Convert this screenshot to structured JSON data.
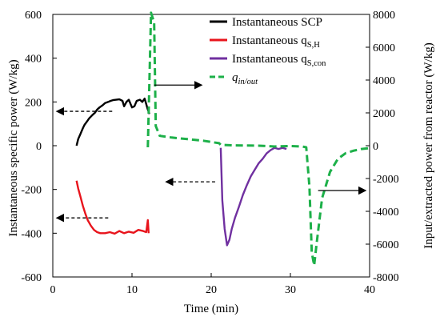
{
  "chart_data": {
    "type": "line",
    "x_axis": {
      "label": "Time (min)",
      "range": [
        0,
        40
      ],
      "ticks": [
        0,
        10,
        20,
        30,
        40
      ]
    },
    "y_left": {
      "label": "Instantaneous specific power (W/kg)",
      "range": [
        -600,
        600
      ],
      "ticks": [
        -600,
        -400,
        -200,
        0,
        200,
        400,
        600
      ]
    },
    "y_right": {
      "label": "Input/extracted power from reactor (W/kg)",
      "range": [
        -8000,
        8000
      ],
      "ticks": [
        -8000,
        -6000,
        -4000,
        -2000,
        0,
        2000,
        4000,
        6000,
        8000
      ]
    },
    "legend_placement": "top-right",
    "grid": false,
    "series": [
      {
        "name": "Instantaneous SCP",
        "legend": {
          "main": "Instantaneous SCP"
        },
        "axis": "left",
        "color": "#000000",
        "dash": "solid",
        "points": [
          [
            3.0,
            0
          ],
          [
            3.2,
            30
          ],
          [
            3.5,
            55
          ],
          [
            3.8,
            80
          ],
          [
            4.0,
            95
          ],
          [
            4.3,
            110
          ],
          [
            4.6,
            125
          ],
          [
            5.0,
            140
          ],
          [
            5.3,
            150
          ],
          [
            5.6,
            165
          ],
          [
            5.9,
            175
          ],
          [
            6.3,
            185
          ],
          [
            6.6,
            195
          ],
          [
            7.0,
            200
          ],
          [
            7.3,
            205
          ],
          [
            7.6,
            208
          ],
          [
            8.0,
            210
          ],
          [
            8.4,
            212
          ],
          [
            8.8,
            205
          ],
          [
            9.0,
            180
          ],
          [
            9.3,
            200
          ],
          [
            9.6,
            210
          ],
          [
            10.0,
            175
          ],
          [
            10.3,
            180
          ],
          [
            10.6,
            205
          ],
          [
            11.0,
            210
          ],
          [
            11.3,
            200
          ],
          [
            11.6,
            215
          ],
          [
            12.0,
            165
          ],
          [
            12.2,
            145
          ]
        ]
      },
      {
        "name": "Instantaneous qS,H",
        "legend": {
          "main": "Instantaneous q",
          "sub": "S,H"
        },
        "axis": "left",
        "color": "#e8141c",
        "dash": "solid",
        "points": [
          [
            3.0,
            -160
          ],
          [
            3.2,
            -195
          ],
          [
            3.5,
            -235
          ],
          [
            3.8,
            -275
          ],
          [
            4.1,
            -310
          ],
          [
            4.4,
            -340
          ],
          [
            4.8,
            -365
          ],
          [
            5.2,
            -385
          ],
          [
            5.6,
            -395
          ],
          [
            6.0,
            -400
          ],
          [
            6.6,
            -400
          ],
          [
            7.2,
            -395
          ],
          [
            7.8,
            -402
          ],
          [
            8.4,
            -390
          ],
          [
            9.0,
            -400
          ],
          [
            9.6,
            -393
          ],
          [
            10.2,
            -398
          ],
          [
            10.8,
            -385
          ],
          [
            11.4,
            -390
          ],
          [
            11.8,
            -395
          ],
          [
            12.0,
            -340
          ],
          [
            12.1,
            -400
          ]
        ]
      },
      {
        "name": "Instantaneous qS,con",
        "legend": {
          "main": "Instantaneous q",
          "sub": "S,con"
        },
        "axis": "left",
        "color": "#7030a0",
        "dash": "solid",
        "points": [
          [
            21.2,
            -10
          ],
          [
            21.4,
            -250
          ],
          [
            21.7,
            -380
          ],
          [
            22.0,
            -455
          ],
          [
            22.3,
            -430
          ],
          [
            22.6,
            -380
          ],
          [
            23.0,
            -330
          ],
          [
            23.5,
            -280
          ],
          [
            24.0,
            -225
          ],
          [
            24.5,
            -180
          ],
          [
            25.0,
            -140
          ],
          [
            25.5,
            -110
          ],
          [
            26.0,
            -80
          ],
          [
            26.5,
            -60
          ],
          [
            27.0,
            -35
          ],
          [
            27.5,
            -20
          ],
          [
            28.0,
            -10
          ],
          [
            28.5,
            -15
          ],
          [
            29.0,
            -10
          ],
          [
            29.5,
            -15
          ]
        ]
      },
      {
        "name": "qin/out",
        "legend": {
          "main": "q",
          "sub": "in/out",
          "italic": true
        },
        "axis": "right",
        "color": "#1db049",
        "dash": "dashed",
        "points": [
          [
            12.0,
            -100
          ],
          [
            12.4,
            8100
          ],
          [
            12.8,
            7500
          ],
          [
            13.0,
            1200
          ],
          [
            13.5,
            600
          ],
          [
            15.0,
            500
          ],
          [
            17.0,
            400
          ],
          [
            19.0,
            300
          ],
          [
            21.0,
            150
          ],
          [
            21.2,
            50
          ],
          [
            23.0,
            20
          ],
          [
            26.0,
            0
          ],
          [
            28.0,
            -50
          ],
          [
            30.0,
            -20
          ],
          [
            31.5,
            -50
          ],
          [
            32.0,
            -100
          ],
          [
            32.4,
            -2500
          ],
          [
            32.7,
            -6500
          ],
          [
            33.0,
            -7300
          ],
          [
            33.3,
            -6000
          ],
          [
            34.0,
            -3200
          ],
          [
            35.0,
            -1600
          ],
          [
            36.0,
            -800
          ],
          [
            37.0,
            -450
          ],
          [
            38.0,
            -300
          ],
          [
            39.0,
            -200
          ],
          [
            40.0,
            -150
          ]
        ]
      }
    ],
    "annotations": [
      {
        "text": "",
        "kind": "arrow-left",
        "from_x": 7.5,
        "to_x": 0.5,
        "y_left": 157
      },
      {
        "text": "",
        "kind": "arrow-left",
        "from_x": 7.0,
        "to_x": 0.5,
        "y_left": -330
      },
      {
        "text": "",
        "kind": "arrow-right",
        "from_x": 12.8,
        "to_x": 18.8,
        "y_left": 277
      },
      {
        "text": "",
        "kind": "arrow-left",
        "from_x": 20.5,
        "to_x": 14.3,
        "y_left": -165
      },
      {
        "text": "",
        "kind": "arrow-right",
        "from_x": 33.5,
        "to_x": 39.5,
        "y_left": -205
      }
    ]
  }
}
